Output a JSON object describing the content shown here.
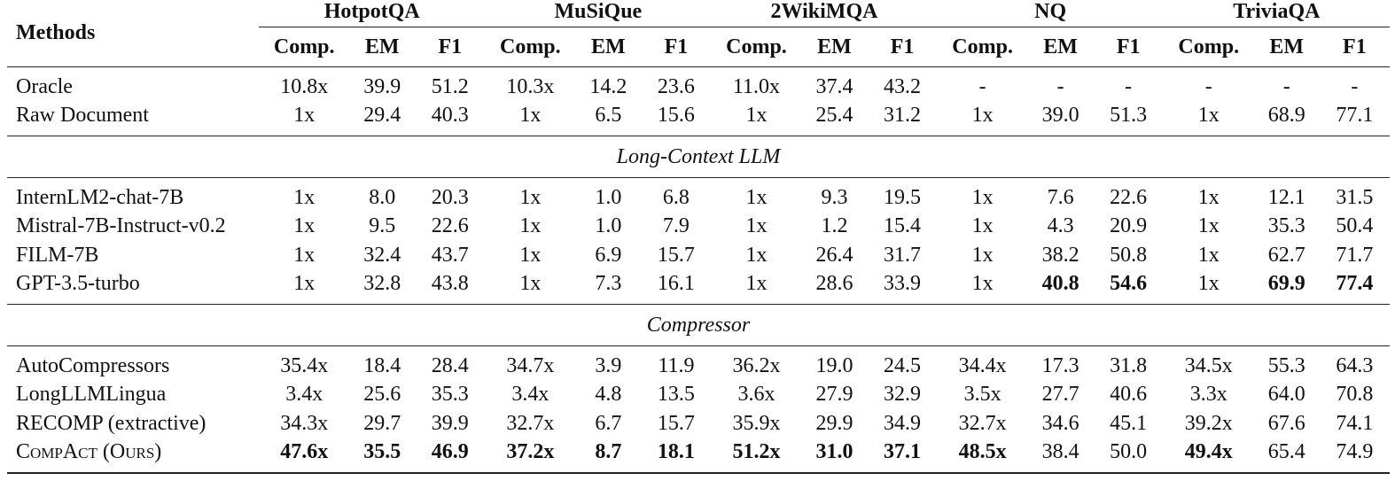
{
  "header": {
    "methods_label": "Methods",
    "datasets": [
      "HotpotQA",
      "MuSiQue",
      "2WikiMQA",
      "NQ",
      "TriviaQA"
    ],
    "metrics": [
      "Comp.",
      "EM",
      "F1"
    ]
  },
  "sections": [
    {
      "title": "",
      "rows": [
        {
          "method": "Oracle",
          "values": [
            "10.8x",
            "39.9",
            "51.2",
            "10.3x",
            "14.2",
            "23.6",
            "11.0x",
            "37.4",
            "43.2",
            "-",
            "-",
            "-",
            "-",
            "-",
            "-"
          ],
          "bold": []
        },
        {
          "method": "Raw Document",
          "values": [
            "1x",
            "29.4",
            "40.3",
            "1x",
            "6.5",
            "15.6",
            "1x",
            "25.4",
            "31.2",
            "1x",
            "39.0",
            "51.3",
            "1x",
            "68.9",
            "77.1"
          ],
          "bold": []
        }
      ]
    },
    {
      "title": "Long-Context LLM",
      "rows": [
        {
          "method": "InternLM2-chat-7B",
          "values": [
            "1x",
            "8.0",
            "20.3",
            "1x",
            "1.0",
            "6.8",
            "1x",
            "9.3",
            "19.5",
            "1x",
            "7.6",
            "22.6",
            "1x",
            "12.1",
            "31.5"
          ],
          "bold": []
        },
        {
          "method": "Mistral-7B-Instruct-v0.2",
          "values": [
            "1x",
            "9.5",
            "22.6",
            "1x",
            "1.0",
            "7.9",
            "1x",
            "1.2",
            "15.4",
            "1x",
            "4.3",
            "20.9",
            "1x",
            "35.3",
            "50.4"
          ],
          "bold": []
        },
        {
          "method": "FILM-7B",
          "values": [
            "1x",
            "32.4",
            "43.7",
            "1x",
            "6.9",
            "15.7",
            "1x",
            "26.4",
            "31.7",
            "1x",
            "38.2",
            "50.8",
            "1x",
            "62.7",
            "71.7"
          ],
          "bold": []
        },
        {
          "method": "GPT-3.5-turbo",
          "values": [
            "1x",
            "32.8",
            "43.8",
            "1x",
            "7.3",
            "16.1",
            "1x",
            "28.6",
            "33.9",
            "1x",
            "40.8",
            "54.6",
            "1x",
            "69.9",
            "77.4"
          ],
          "bold": [
            10,
            11,
            13,
            14
          ]
        }
      ]
    },
    {
      "title": "Compressor",
      "rows": [
        {
          "method": "AutoCompressors",
          "values": [
            "35.4x",
            "18.4",
            "28.4",
            "34.7x",
            "3.9",
            "11.9",
            "36.2x",
            "19.0",
            "24.5",
            "34.4x",
            "17.3",
            "31.8",
            "34.5x",
            "55.3",
            "64.3"
          ],
          "bold": []
        },
        {
          "method": "LongLLMLingua",
          "values": [
            "3.4x",
            "25.6",
            "35.3",
            "3.4x",
            "4.8",
            "13.5",
            "3.6x",
            "27.9",
            "32.9",
            "3.5x",
            "27.7",
            "40.6",
            "3.3x",
            "64.0",
            "70.8"
          ],
          "bold": []
        },
        {
          "method": "RECOMP (extractive)",
          "values": [
            "34.3x",
            "29.7",
            "39.9",
            "32.7x",
            "6.7",
            "15.7",
            "35.9x",
            "29.9",
            "34.9",
            "32.7x",
            "34.6",
            "45.1",
            "39.2x",
            "67.6",
            "74.1"
          ],
          "bold": []
        },
        {
          "method": "CompAct (Ours)",
          "values": [
            "47.6x",
            "35.5",
            "46.9",
            "37.2x",
            "8.7",
            "18.1",
            "51.2x",
            "31.0",
            "37.1",
            "48.5x",
            "38.4",
            "50.0",
            "49.4x",
            "65.4",
            "74.9"
          ],
          "bold": [
            0,
            1,
            2,
            3,
            4,
            5,
            6,
            7,
            8,
            9,
            12
          ],
          "small_caps": true
        }
      ]
    }
  ]
}
